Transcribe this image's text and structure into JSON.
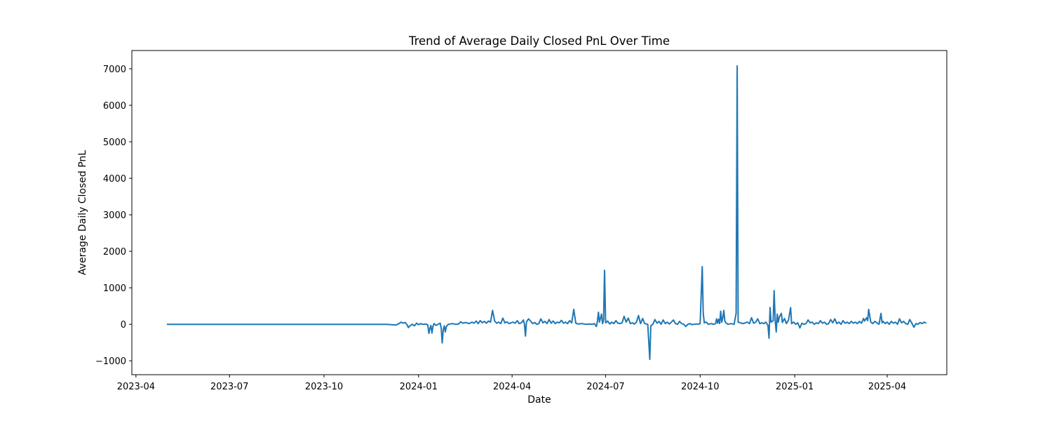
{
  "chart_data": {
    "type": "line",
    "title": "Trend of Average Daily Closed PnL Over Time",
    "xlabel": "Date",
    "ylabel": "Average Daily Closed PnL",
    "x_ticks": [
      "2023-04",
      "2023-07",
      "2023-10",
      "2024-01",
      "2024-04",
      "2024-07",
      "2024-10",
      "2025-01",
      "2025-04"
    ],
    "y_ticks": [
      -1000,
      0,
      1000,
      2000,
      3000,
      4000,
      5000,
      6000,
      7000
    ],
    "xlim": [
      "2023-03-28",
      "2025-05-29"
    ],
    "ylim": [
      -1380,
      7500
    ],
    "grid": false,
    "legend": "none",
    "series": [
      {
        "color": "#1f77b4",
        "points": [
          [
            "2023-05-01",
            0
          ],
          [
            "2023-07-01",
            0
          ],
          [
            "2023-09-01",
            0
          ],
          [
            "2023-11-01",
            0
          ],
          [
            "2023-12-01",
            0
          ],
          [
            "2023-12-10",
            -20
          ],
          [
            "2023-12-13",
            20
          ],
          [
            "2023-12-15",
            60
          ],
          [
            "2023-12-17",
            30
          ],
          [
            "2023-12-19",
            50
          ],
          [
            "2023-12-21",
            -20
          ],
          [
            "2023-12-22",
            -90
          ],
          [
            "2023-12-24",
            -30
          ],
          [
            "2023-12-26",
            0
          ],
          [
            "2023-12-28",
            -40
          ],
          [
            "2023-12-30",
            30
          ],
          [
            "2024-01-01",
            -10
          ],
          [
            "2024-01-03",
            20
          ],
          [
            "2024-01-05",
            0
          ],
          [
            "2024-01-08",
            10
          ],
          [
            "2024-01-10",
            -20
          ],
          [
            "2024-01-11",
            -250
          ],
          [
            "2024-01-12",
            -120
          ],
          [
            "2024-01-13",
            -30
          ],
          [
            "2024-01-14",
            -240
          ],
          [
            "2024-01-15",
            -60
          ],
          [
            "2024-01-16",
            20
          ],
          [
            "2024-01-18",
            -30
          ],
          [
            "2024-01-20",
            0
          ],
          [
            "2024-01-22",
            30
          ],
          [
            "2024-01-23",
            -100
          ],
          [
            "2024-01-24",
            -510
          ],
          [
            "2024-01-25",
            -150
          ],
          [
            "2024-01-26",
            -40
          ],
          [
            "2024-01-27",
            -210
          ],
          [
            "2024-01-28",
            -60
          ],
          [
            "2024-01-30",
            0
          ],
          [
            "2024-02-03",
            20
          ],
          [
            "2024-02-06",
            0
          ],
          [
            "2024-02-09",
            10
          ],
          [
            "2024-02-11",
            70
          ],
          [
            "2024-02-13",
            30
          ],
          [
            "2024-02-16",
            50
          ],
          [
            "2024-02-19",
            20
          ],
          [
            "2024-02-22",
            60
          ],
          [
            "2024-02-24",
            30
          ],
          [
            "2024-02-26",
            90
          ],
          [
            "2024-02-28",
            20
          ],
          [
            "2024-03-01",
            100
          ],
          [
            "2024-03-03",
            40
          ],
          [
            "2024-03-05",
            80
          ],
          [
            "2024-03-07",
            30
          ],
          [
            "2024-03-09",
            90
          ],
          [
            "2024-03-11",
            60
          ],
          [
            "2024-03-13",
            380
          ],
          [
            "2024-03-15",
            90
          ],
          [
            "2024-03-17",
            30
          ],
          [
            "2024-03-19",
            60
          ],
          [
            "2024-03-21",
            20
          ],
          [
            "2024-03-23",
            170
          ],
          [
            "2024-03-25",
            40
          ],
          [
            "2024-03-27",
            70
          ],
          [
            "2024-03-29",
            20
          ],
          [
            "2024-03-31",
            40
          ],
          [
            "2024-04-02",
            60
          ],
          [
            "2024-04-04",
            30
          ],
          [
            "2024-04-06",
            100
          ],
          [
            "2024-04-08",
            20
          ],
          [
            "2024-04-10",
            40
          ],
          [
            "2024-04-12",
            120
          ],
          [
            "2024-04-13",
            0
          ],
          [
            "2024-04-14",
            -320
          ],
          [
            "2024-04-15",
            70
          ],
          [
            "2024-04-17",
            150
          ],
          [
            "2024-04-19",
            90
          ],
          [
            "2024-04-21",
            20
          ],
          [
            "2024-04-23",
            50
          ],
          [
            "2024-04-25",
            0
          ],
          [
            "2024-04-27",
            20
          ],
          [
            "2024-04-29",
            150
          ],
          [
            "2024-05-01",
            40
          ],
          [
            "2024-05-03",
            80
          ],
          [
            "2024-05-05",
            20
          ],
          [
            "2024-05-07",
            130
          ],
          [
            "2024-05-09",
            30
          ],
          [
            "2024-05-11",
            90
          ],
          [
            "2024-05-13",
            20
          ],
          [
            "2024-05-15",
            60
          ],
          [
            "2024-05-17",
            40
          ],
          [
            "2024-05-19",
            110
          ],
          [
            "2024-05-21",
            30
          ],
          [
            "2024-05-23",
            60
          ],
          [
            "2024-05-25",
            20
          ],
          [
            "2024-05-27",
            100
          ],
          [
            "2024-05-29",
            40
          ],
          [
            "2024-05-31",
            410
          ],
          [
            "2024-06-02",
            30
          ],
          [
            "2024-06-04",
            10
          ],
          [
            "2024-06-08",
            20
          ],
          [
            "2024-06-12",
            0
          ],
          [
            "2024-06-15",
            10
          ],
          [
            "2024-06-18",
            0
          ],
          [
            "2024-06-20",
            20
          ],
          [
            "2024-06-22",
            -60
          ],
          [
            "2024-06-23",
            80
          ],
          [
            "2024-06-24",
            330
          ],
          [
            "2024-06-25",
            60
          ],
          [
            "2024-06-27",
            280
          ],
          [
            "2024-06-28",
            20
          ],
          [
            "2024-06-29",
            120
          ],
          [
            "2024-06-30",
            1480
          ],
          [
            "2024-07-01",
            40
          ],
          [
            "2024-07-03",
            90
          ],
          [
            "2024-07-05",
            10
          ],
          [
            "2024-07-07",
            60
          ],
          [
            "2024-07-09",
            20
          ],
          [
            "2024-07-11",
            100
          ],
          [
            "2024-07-13",
            30
          ],
          [
            "2024-07-15",
            20
          ],
          [
            "2024-07-17",
            40
          ],
          [
            "2024-07-19",
            220
          ],
          [
            "2024-07-21",
            60
          ],
          [
            "2024-07-23",
            170
          ],
          [
            "2024-07-25",
            20
          ],
          [
            "2024-07-27",
            40
          ],
          [
            "2024-07-29",
            10
          ],
          [
            "2024-07-31",
            60
          ],
          [
            "2024-08-02",
            240
          ],
          [
            "2024-08-04",
            20
          ],
          [
            "2024-08-06",
            160
          ],
          [
            "2024-08-08",
            20
          ],
          [
            "2024-08-11",
            0
          ],
          [
            "2024-08-13",
            -960
          ],
          [
            "2024-08-14",
            -40
          ],
          [
            "2024-08-16",
            0
          ],
          [
            "2024-08-18",
            130
          ],
          [
            "2024-08-20",
            30
          ],
          [
            "2024-08-22",
            80
          ],
          [
            "2024-08-24",
            0
          ],
          [
            "2024-08-26",
            120
          ],
          [
            "2024-08-28",
            20
          ],
          [
            "2024-08-30",
            60
          ],
          [
            "2024-09-01",
            10
          ],
          [
            "2024-09-03",
            60
          ],
          [
            "2024-09-05",
            120
          ],
          [
            "2024-09-07",
            20
          ],
          [
            "2024-09-09",
            0
          ],
          [
            "2024-09-11",
            80
          ],
          [
            "2024-09-13",
            20
          ],
          [
            "2024-09-15",
            0
          ],
          [
            "2024-09-17",
            -60
          ],
          [
            "2024-09-19",
            0
          ],
          [
            "2024-09-21",
            20
          ],
          [
            "2024-09-23",
            -10
          ],
          [
            "2024-09-25",
            0
          ],
          [
            "2024-09-27",
            10
          ],
          [
            "2024-09-29",
            0
          ],
          [
            "2024-10-01",
            20
          ],
          [
            "2024-10-03",
            1580
          ],
          [
            "2024-10-04",
            300
          ],
          [
            "2024-10-05",
            40
          ],
          [
            "2024-10-07",
            60
          ],
          [
            "2024-10-09",
            0
          ],
          [
            "2024-10-12",
            20
          ],
          [
            "2024-10-14",
            0
          ],
          [
            "2024-10-16",
            20
          ],
          [
            "2024-10-17",
            150
          ],
          [
            "2024-10-18",
            30
          ],
          [
            "2024-10-19",
            140
          ],
          [
            "2024-10-20",
            20
          ],
          [
            "2024-10-21",
            360
          ],
          [
            "2024-10-22",
            60
          ],
          [
            "2024-10-23",
            180
          ],
          [
            "2024-10-24",
            380
          ],
          [
            "2024-10-25",
            90
          ],
          [
            "2024-10-26",
            40
          ],
          [
            "2024-10-28",
            0
          ],
          [
            "2024-10-31",
            20
          ],
          [
            "2024-11-03",
            0
          ],
          [
            "2024-11-05",
            300
          ],
          [
            "2024-11-06",
            7080
          ],
          [
            "2024-11-07",
            60
          ],
          [
            "2024-11-09",
            40
          ],
          [
            "2024-11-12",
            20
          ],
          [
            "2024-11-14",
            40
          ],
          [
            "2024-11-16",
            60
          ],
          [
            "2024-11-18",
            20
          ],
          [
            "2024-11-20",
            180
          ],
          [
            "2024-11-22",
            30
          ],
          [
            "2024-11-24",
            60
          ],
          [
            "2024-11-26",
            150
          ],
          [
            "2024-11-28",
            20
          ],
          [
            "2024-11-30",
            40
          ],
          [
            "2024-12-02",
            20
          ],
          [
            "2024-12-04",
            60
          ],
          [
            "2024-12-06",
            -30
          ],
          [
            "2024-12-07",
            -380
          ],
          [
            "2024-12-08",
            460
          ],
          [
            "2024-12-09",
            60
          ],
          [
            "2024-12-11",
            100
          ],
          [
            "2024-12-12",
            920
          ],
          [
            "2024-12-13",
            100
          ],
          [
            "2024-12-14",
            -210
          ],
          [
            "2024-12-15",
            280
          ],
          [
            "2024-12-16",
            60
          ],
          [
            "2024-12-17",
            200
          ],
          [
            "2024-12-19",
            300
          ],
          [
            "2024-12-20",
            50
          ],
          [
            "2024-12-22",
            160
          ],
          [
            "2024-12-24",
            20
          ],
          [
            "2024-12-26",
            120
          ],
          [
            "2024-12-28",
            460
          ],
          [
            "2024-12-29",
            20
          ],
          [
            "2024-12-31",
            60
          ],
          [
            "2025-01-02",
            0
          ],
          [
            "2025-01-04",
            40
          ],
          [
            "2025-01-06",
            -100
          ],
          [
            "2025-01-08",
            30
          ],
          [
            "2025-01-10",
            0
          ],
          [
            "2025-01-12",
            20
          ],
          [
            "2025-01-14",
            120
          ],
          [
            "2025-01-16",
            40
          ],
          [
            "2025-01-18",
            60
          ],
          [
            "2025-01-20",
            0
          ],
          [
            "2025-01-22",
            40
          ],
          [
            "2025-01-24",
            20
          ],
          [
            "2025-01-26",
            100
          ],
          [
            "2025-01-28",
            30
          ],
          [
            "2025-01-30",
            60
          ],
          [
            "2025-02-01",
            0
          ],
          [
            "2025-02-03",
            20
          ],
          [
            "2025-02-05",
            130
          ],
          [
            "2025-02-07",
            40
          ],
          [
            "2025-02-09",
            150
          ],
          [
            "2025-02-11",
            20
          ],
          [
            "2025-02-13",
            60
          ],
          [
            "2025-02-15",
            0
          ],
          [
            "2025-02-17",
            100
          ],
          [
            "2025-02-19",
            30
          ],
          [
            "2025-02-21",
            60
          ],
          [
            "2025-02-23",
            20
          ],
          [
            "2025-02-25",
            80
          ],
          [
            "2025-02-27",
            30
          ],
          [
            "2025-03-01",
            60
          ],
          [
            "2025-03-03",
            20
          ],
          [
            "2025-03-05",
            80
          ],
          [
            "2025-03-07",
            30
          ],
          [
            "2025-03-09",
            160
          ],
          [
            "2025-03-10",
            90
          ],
          [
            "2025-03-12",
            180
          ],
          [
            "2025-03-13",
            100
          ],
          [
            "2025-03-14",
            410
          ],
          [
            "2025-03-16",
            60
          ],
          [
            "2025-03-18",
            20
          ],
          [
            "2025-03-20",
            80
          ],
          [
            "2025-03-22",
            40
          ],
          [
            "2025-03-24",
            0
          ],
          [
            "2025-03-26",
            300
          ],
          [
            "2025-03-27",
            40
          ],
          [
            "2025-03-28",
            80
          ],
          [
            "2025-03-30",
            20
          ],
          [
            "2025-04-01",
            60
          ],
          [
            "2025-04-03",
            0
          ],
          [
            "2025-04-05",
            80
          ],
          [
            "2025-04-07",
            30
          ],
          [
            "2025-04-09",
            60
          ],
          [
            "2025-04-11",
            0
          ],
          [
            "2025-04-13",
            150
          ],
          [
            "2025-04-15",
            40
          ],
          [
            "2025-04-17",
            80
          ],
          [
            "2025-04-19",
            20
          ],
          [
            "2025-04-21",
            0
          ],
          [
            "2025-04-23",
            130
          ],
          [
            "2025-04-25",
            30
          ],
          [
            "2025-04-27",
            -80
          ],
          [
            "2025-04-29",
            20
          ],
          [
            "2025-05-01",
            0
          ],
          [
            "2025-05-03",
            50
          ],
          [
            "2025-05-05",
            20
          ],
          [
            "2025-05-07",
            60
          ],
          [
            "2025-05-09",
            30
          ]
        ]
      }
    ]
  }
}
